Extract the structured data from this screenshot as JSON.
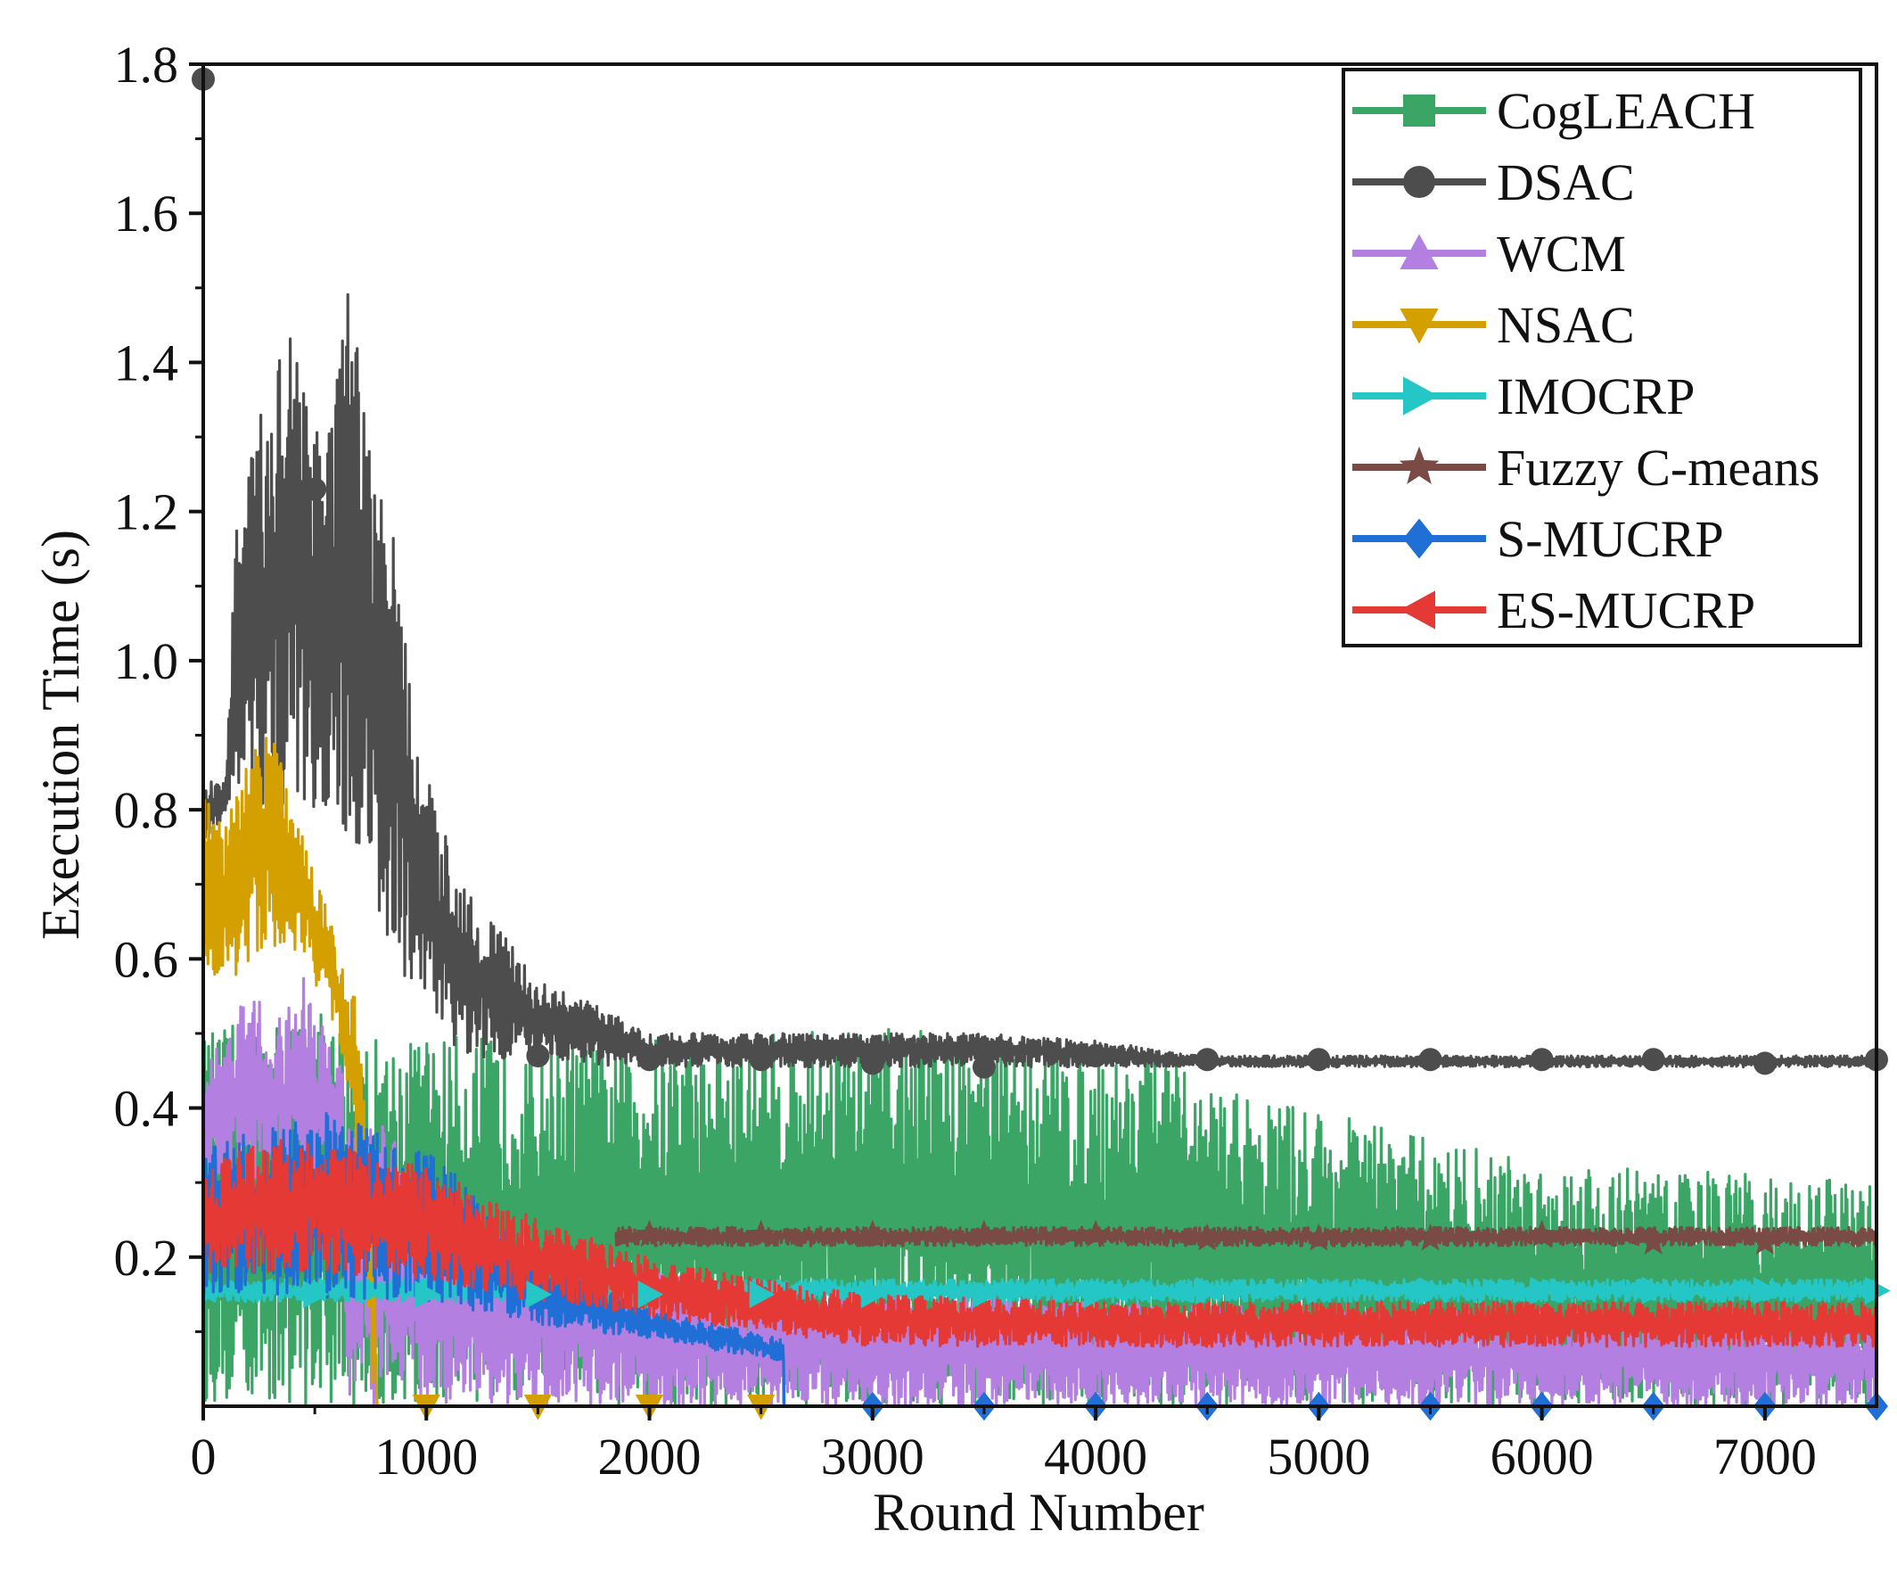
{
  "chart_data": {
    "type": "line",
    "title": "",
    "xlabel": "Round Number",
    "ylabel": "Execution Time (s)",
    "xlim": [
      0,
      7500
    ],
    "ylim": [
      0,
      1.8
    ],
    "xticks": [
      0,
      1000,
      2000,
      3000,
      4000,
      5000,
      6000,
      7000
    ],
    "xtick_labels": [
      "0",
      "1000",
      "2000",
      "3000",
      "4000",
      "5000",
      "6000",
      "7000"
    ],
    "yticks": [
      0.2,
      0.4,
      0.6,
      0.8,
      1.0,
      1.2,
      1.4,
      1.6,
      1.8
    ],
    "ytick_labels": [
      "0.2",
      "0.4",
      "0.6",
      "0.8",
      "1.0",
      "1.2",
      "1.4",
      "1.6",
      "1.8"
    ],
    "grid": false,
    "legend_position": "top-right",
    "series": [
      {
        "name": "CogLEACH",
        "color": "#3aa565",
        "marker": "square",
        "marker_x": [],
        "upper": [
          [
            0,
            0.5
          ],
          [
            250,
            0.52
          ],
          [
            500,
            0.53
          ],
          [
            750,
            0.5
          ],
          [
            1000,
            0.5
          ],
          [
            1500,
            0.49
          ],
          [
            2000,
            0.5
          ],
          [
            2500,
            0.5
          ],
          [
            3000,
            0.51
          ],
          [
            3500,
            0.5
          ],
          [
            4000,
            0.48
          ],
          [
            4300,
            0.47
          ],
          [
            4500,
            0.43
          ],
          [
            5000,
            0.4
          ],
          [
            5500,
            0.36
          ],
          [
            6000,
            0.33
          ],
          [
            6500,
            0.32
          ],
          [
            7000,
            0.31
          ],
          [
            7500,
            0.3
          ]
        ],
        "lower": [
          [
            0,
            0.0
          ],
          [
            1000,
            0.0
          ],
          [
            2000,
            0.0
          ],
          [
            3000,
            0.0
          ],
          [
            4000,
            0.0
          ],
          [
            5000,
            0.0
          ],
          [
            6000,
            0.0
          ],
          [
            7000,
            0.0
          ],
          [
            7500,
            0.0
          ]
        ]
      },
      {
        "name": "DSAC",
        "color": "#4d4d4d",
        "marker": "circle",
        "marker_x": [
          0,
          500,
          1500,
          2000,
          2500,
          3000,
          3500,
          4000,
          4500,
          5000,
          5500,
          6000,
          6500,
          7000,
          7500
        ],
        "marker_y": [
          1.78,
          1.23,
          0.47,
          0.465,
          0.465,
          0.46,
          0.455,
          0.47,
          0.465,
          0.465,
          0.465,
          0.465,
          0.465,
          0.46,
          0.465
        ],
        "upper": [
          [
            0,
            0.84
          ],
          [
            100,
            0.84
          ],
          [
            150,
            1.2
          ],
          [
            250,
            1.32
          ],
          [
            400,
            1.5
          ],
          [
            550,
            1.3
          ],
          [
            650,
            1.5
          ],
          [
            750,
            1.3
          ],
          [
            850,
            1.18
          ],
          [
            950,
            0.9
          ],
          [
            1050,
            0.8
          ],
          [
            1150,
            0.72
          ],
          [
            1300,
            0.65
          ],
          [
            1500,
            0.57
          ],
          [
            1750,
            0.54
          ],
          [
            2000,
            0.5
          ],
          [
            2500,
            0.5
          ],
          [
            3000,
            0.5
          ],
          [
            3500,
            0.5
          ],
          [
            4000,
            0.49
          ],
          [
            4500,
            0.47
          ],
          [
            5000,
            0.47
          ],
          [
            6000,
            0.47
          ],
          [
            7000,
            0.47
          ],
          [
            7500,
            0.47
          ]
        ],
        "lower": [
          [
            0,
            0.75
          ],
          [
            150,
            0.82
          ],
          [
            300,
            0.78
          ],
          [
            500,
            0.8
          ],
          [
            700,
            0.75
          ],
          [
            850,
            0.6
          ],
          [
            1000,
            0.5
          ],
          [
            1200,
            0.47
          ],
          [
            1500,
            0.46
          ],
          [
            2000,
            0.455
          ],
          [
            3000,
            0.455
          ],
          [
            4000,
            0.455
          ],
          [
            5000,
            0.455
          ],
          [
            6000,
            0.455
          ],
          [
            7000,
            0.455
          ],
          [
            7500,
            0.455
          ]
        ]
      },
      {
        "name": "WCM",
        "color": "#b37fe0",
        "marker": "triangle-up",
        "marker_x": [],
        "upper": [
          [
            0,
            0.45
          ],
          [
            100,
            0.5
          ],
          [
            200,
            0.56
          ],
          [
            350,
            0.52
          ],
          [
            450,
            0.58
          ],
          [
            550,
            0.5
          ],
          [
            650,
            0.45
          ],
          [
            700,
            0.4
          ],
          [
            800,
            0.38
          ],
          [
            1000,
            0.3
          ],
          [
            1500,
            0.22
          ],
          [
            2000,
            0.18
          ],
          [
            2500,
            0.16
          ],
          [
            3000,
            0.15
          ],
          [
            3500,
            0.15
          ],
          [
            4000,
            0.14
          ],
          [
            5000,
            0.13
          ],
          [
            6000,
            0.13
          ],
          [
            7000,
            0.12
          ],
          [
            7500,
            0.12
          ]
        ],
        "lower": [
          [
            0,
            0.3
          ],
          [
            200,
            0.3
          ],
          [
            400,
            0.3
          ],
          [
            600,
            0.3
          ],
          [
            650,
            0.0
          ],
          [
            1000,
            0.0
          ],
          [
            2000,
            0.0
          ],
          [
            3000,
            0.0
          ],
          [
            4000,
            0.0
          ],
          [
            5000,
            0.0
          ],
          [
            6000,
            0.0
          ],
          [
            7000,
            0.0
          ],
          [
            7500,
            0.0
          ]
        ]
      },
      {
        "name": "NSAC",
        "color": "#d4a000",
        "marker": "triangle-down",
        "marker_x": [
          1000,
          1500,
          2000,
          2500
        ],
        "marker_y": [
          0.0,
          0.0,
          0.0,
          0.0
        ],
        "upper": [
          [
            0,
            0.82
          ],
          [
            80,
            0.78
          ],
          [
            150,
            0.82
          ],
          [
            200,
            0.87
          ],
          [
            300,
            0.92
          ],
          [
            400,
            0.8
          ],
          [
            500,
            0.72
          ],
          [
            600,
            0.62
          ],
          [
            680,
            0.55
          ],
          [
            720,
            0.42
          ],
          [
            760,
            0.35
          ],
          [
            780,
            0.0
          ],
          [
            2600,
            0.0
          ]
        ],
        "lower": [
          [
            0,
            0.58
          ],
          [
            150,
            0.57
          ],
          [
            300,
            0.62
          ],
          [
            450,
            0.6
          ],
          [
            600,
            0.5
          ],
          [
            700,
            0.3
          ],
          [
            760,
            0.0
          ],
          [
            2600,
            0.0
          ]
        ]
      },
      {
        "name": "IMOCRP",
        "color": "#25c6c6",
        "marker": "triangle-right",
        "marker_x": [
          500,
          1000,
          1500,
          2000,
          2500,
          3000,
          3500,
          4000,
          4500,
          5000,
          5500,
          6000,
          6500,
          7000,
          7500
        ],
        "marker_y": [
          0.15,
          0.15,
          0.15,
          0.15,
          0.15,
          0.15,
          0.15,
          0.15,
          0.155,
          0.155,
          0.155,
          0.155,
          0.155,
          0.155,
          0.155
        ],
        "upper": [
          [
            0,
            0.17
          ],
          [
            7500,
            0.17
          ]
        ],
        "lower": [
          [
            0,
            0.14
          ],
          [
            7500,
            0.14
          ]
        ]
      },
      {
        "name": "Fuzzy C-means",
        "color": "#7a4a44",
        "marker": "star",
        "marker_x": [
          2000,
          2500,
          3000,
          3500,
          4000,
          4500,
          5000,
          5500,
          6000,
          6500,
          7000
        ],
        "marker_y": [
          0.23,
          0.23,
          0.23,
          0.23,
          0.23,
          0.225,
          0.225,
          0.225,
          0.23,
          0.22,
          0.22
        ],
        "upper": [
          [
            1850,
            0.24
          ],
          [
            7500,
            0.24
          ]
        ],
        "lower": [
          [
            1850,
            0.215
          ],
          [
            7500,
            0.215
          ]
        ]
      },
      {
        "name": "S-MUCRP",
        "color": "#1f6fd6",
        "marker": "diamond",
        "marker_x": [
          3000,
          3500,
          4000,
          4500,
          5000,
          5500,
          6000,
          6500,
          7000,
          7500
        ],
        "marker_y": [
          0.0,
          0.0,
          0.0,
          0.0,
          0.0,
          0.0,
          0.0,
          0.0,
          0.0,
          0.0
        ],
        "upper": [
          [
            0,
            0.35
          ],
          [
            500,
            0.4
          ],
          [
            1000,
            0.35
          ],
          [
            1500,
            0.2
          ],
          [
            2000,
            0.13
          ],
          [
            2600,
            0.09
          ],
          [
            2600,
            0.0
          ],
          [
            7500,
            0.0
          ]
        ],
        "lower": [
          [
            0,
            0.15
          ],
          [
            1000,
            0.14
          ],
          [
            1500,
            0.11
          ],
          [
            2000,
            0.09
          ],
          [
            2600,
            0.06
          ],
          [
            2600,
            0.0
          ],
          [
            7500,
            0.0
          ]
        ]
      },
      {
        "name": "ES-MUCRP",
        "color": "#e53935",
        "marker": "triangle-left",
        "marker_x": [],
        "upper": [
          [
            0,
            0.32
          ],
          [
            300,
            0.36
          ],
          [
            600,
            0.35
          ],
          [
            1000,
            0.32
          ],
          [
            1500,
            0.25
          ],
          [
            2000,
            0.2
          ],
          [
            2500,
            0.17
          ],
          [
            3000,
            0.15
          ],
          [
            4000,
            0.14
          ],
          [
            5000,
            0.14
          ],
          [
            6000,
            0.14
          ],
          [
            7000,
            0.14
          ],
          [
            7500,
            0.14
          ]
        ],
        "lower": [
          [
            0,
            0.18
          ],
          [
            500,
            0.18
          ],
          [
            1000,
            0.17
          ],
          [
            1500,
            0.14
          ],
          [
            2000,
            0.12
          ],
          [
            2500,
            0.1
          ],
          [
            3000,
            0.08
          ],
          [
            4000,
            0.08
          ],
          [
            5000,
            0.08
          ],
          [
            6000,
            0.08
          ],
          [
            7000,
            0.08
          ],
          [
            7500,
            0.08
          ]
        ]
      }
    ]
  }
}
